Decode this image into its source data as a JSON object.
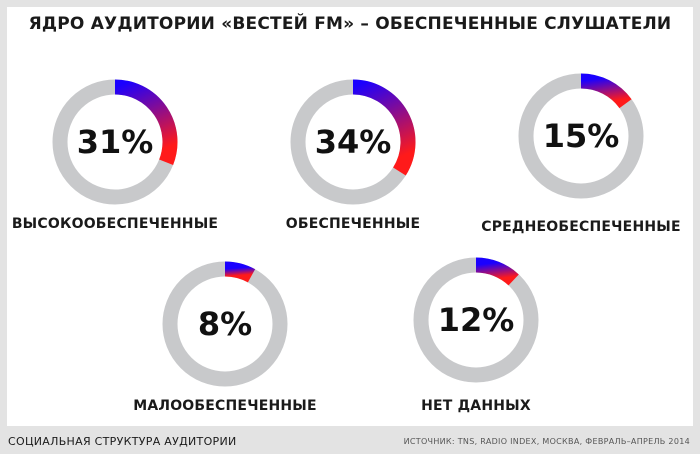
{
  "title": "ЯДРО АУДИТОРИИ «ВЕСТЕЙ FM» – ОБЕСПЕЧЕННЫЕ СЛУШАТЕЛИ",
  "footer": {
    "left": "СОЦИАЛЬНАЯ СТРУКТУРА АУДИТОРИИ",
    "source": "ИСТОЧНИК: TNS, RADIO INDEX, МОСКВА, ФЕВРАЛЬ–АПРЕЛЬ 2014"
  },
  "colors": {
    "track": "#c8c9cb",
    "gradient_start": "#1a00ff",
    "gradient_end": "#ff1a1a"
  },
  "chart_data": {
    "type": "pie",
    "title": "ЯДРО АУДИТОРИИ «ВЕСТЕЙ FM» – ОБЕСПЕЧЕННЫЕ СЛУШАТЕЛИ",
    "unit": "%",
    "items": [
      {
        "label": "ВЫСОКООБЕСПЕЧЕННЫЕ",
        "value": 31,
        "value_label": "31%"
      },
      {
        "label": "ОБЕСПЕЧЕННЫЕ",
        "value": 34,
        "value_label": "34%"
      },
      {
        "label": "СРЕДНЕОБЕСПЕЧЕННЫЕ",
        "value": 15,
        "value_label": "15%"
      },
      {
        "label": "МАЛООБЕСПЕЧЕННЫЕ",
        "value": 8,
        "value_label": "8%"
      },
      {
        "label": "НЕТ ДАННЫХ",
        "value": 12,
        "value_label": "12%"
      }
    ]
  }
}
